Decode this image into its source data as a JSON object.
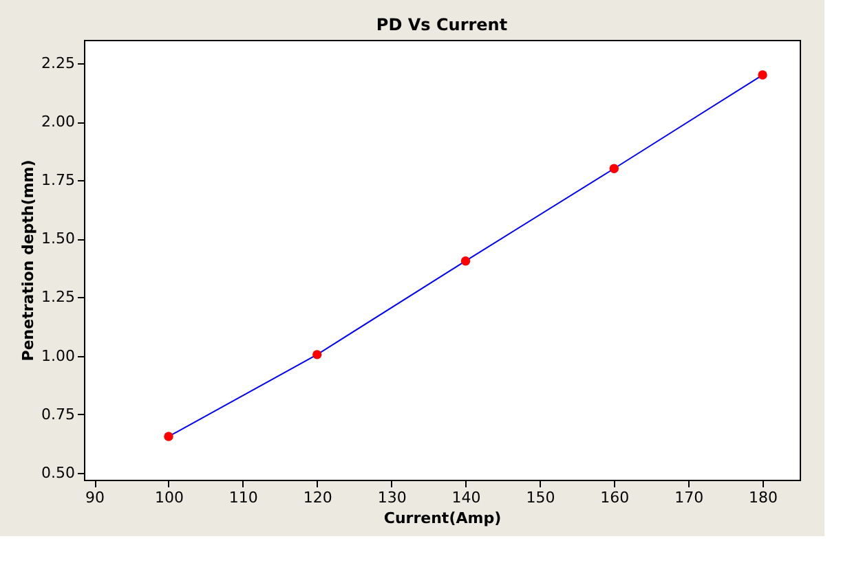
{
  "chart_data": {
    "type": "line",
    "title": "PD Vs Current",
    "xlabel": "Current(Amp)",
    "ylabel": "Penetration depth(mm)",
    "x": [
      100,
      120,
      140,
      160,
      180
    ],
    "series": [
      {
        "color": "#0000ff",
        "colors": [
          "#ff0000",
          "#ff0000",
          "#ff0000",
          "#ff0000",
          "#ff0000"
        ],
        "values": [
          0.655,
          1.005,
          1.405,
          1.8,
          2.2
        ]
      }
    ],
    "xlim": [
      88.6,
      185
    ],
    "xticks": [
      90,
      100,
      110,
      120,
      130,
      140,
      150,
      160,
      170,
      180
    ],
    "ylim": [
      0.47,
      2.35
    ],
    "yticks": [
      {
        "value": 0.5,
        "label": "0.50"
      },
      0.75,
      {
        "value": 1.0,
        "label": "1.00"
      },
      1.25,
      {
        "value": 1.5,
        "label": "1.50"
      },
      1.75,
      {
        "value": 2.0,
        "label": "2.00"
      },
      2.25
    ],
    "grid": false,
    "marker": "circle",
    "line_style": "solid"
  }
}
